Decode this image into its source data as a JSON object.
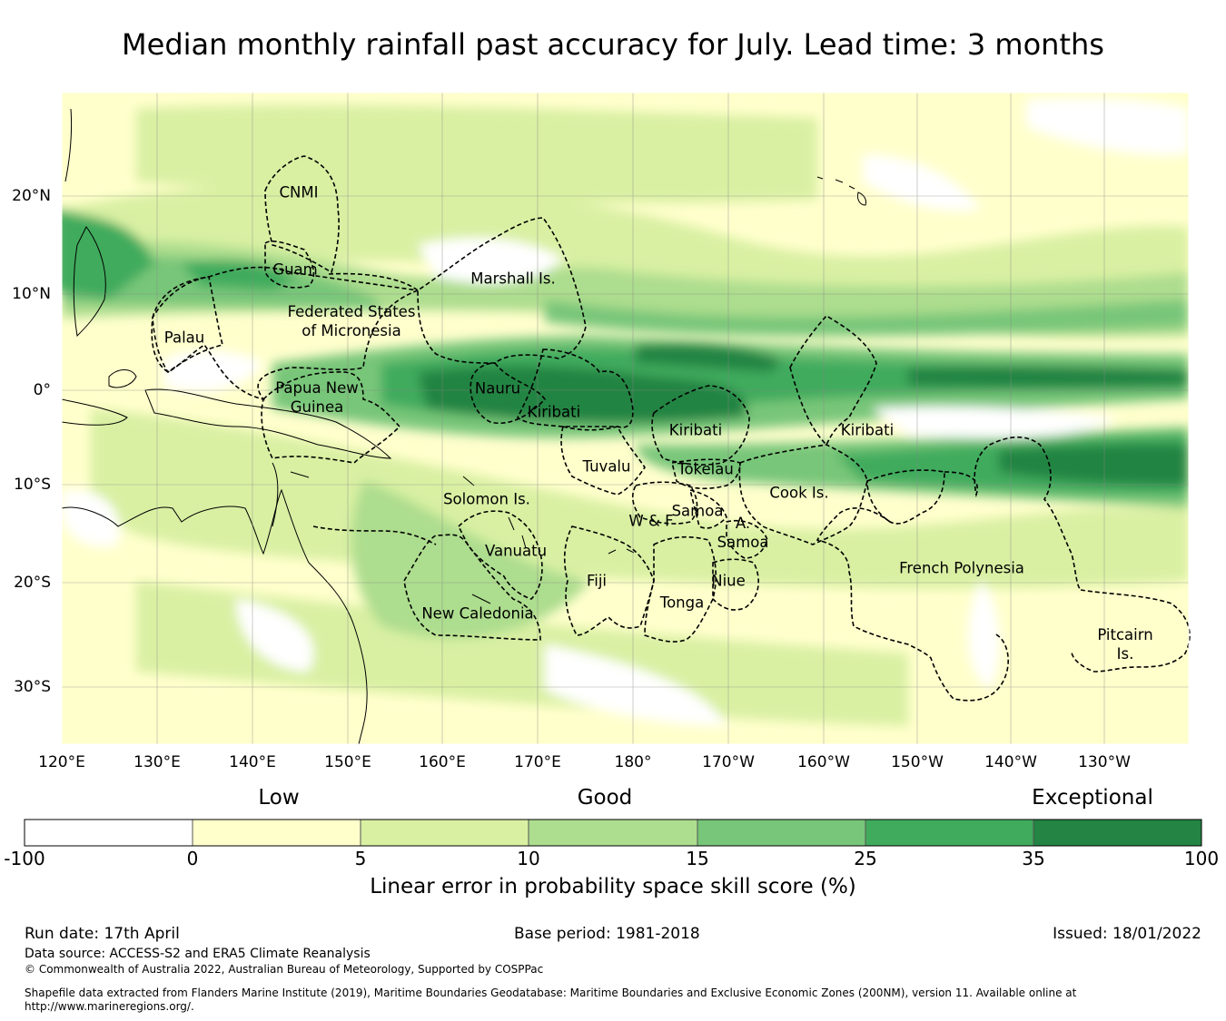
{
  "title": "Median monthly rainfall past accuracy for July. Lead time: 3 months",
  "map": {
    "lat_labels": [
      "20°N",
      "10°N",
      "0°",
      "10°S",
      "20°S",
      "30°S"
    ],
    "lon_labels": [
      "120°E",
      "130°E",
      "140°E",
      "150°E",
      "160°E",
      "170°E",
      "180°",
      "170°W",
      "160°W",
      "150°W",
      "140°W",
      "130°W"
    ],
    "regions": [
      {
        "name": "CNMI"
      },
      {
        "name": "Guam"
      },
      {
        "name": "Marshall Is."
      },
      {
        "name": "Palau"
      },
      {
        "name": "Federated States\nof Micronesia"
      },
      {
        "name": "Papua New\nGuinea"
      },
      {
        "name": "Nauru"
      },
      {
        "name": "Kiribati"
      },
      {
        "name": "Kiribati"
      },
      {
        "name": "Kiribati"
      },
      {
        "name": "Tuvalu"
      },
      {
        "name": "Tokelau"
      },
      {
        "name": "Solomon Is."
      },
      {
        "name": "Cook Is."
      },
      {
        "name": "Samoa"
      },
      {
        "name": "W & F"
      },
      {
        "name": "A.\nSamoa"
      },
      {
        "name": "Vanuatu"
      },
      {
        "name": "Fiji"
      },
      {
        "name": "Niue"
      },
      {
        "name": "Tonga"
      },
      {
        "name": "French Polynesia"
      },
      {
        "name": "New Caledonia"
      },
      {
        "name": "Pitcairn\nIs."
      }
    ]
  },
  "legend": {
    "categories": [
      "Low",
      "Good",
      "Exceptional"
    ],
    "ticks": [
      "-100",
      "0",
      "5",
      "10",
      "15",
      "25",
      "35",
      "100"
    ],
    "colors": [
      "#ffffff",
      "#ffffcc",
      "#d9f0a3",
      "#addd8e",
      "#78c679",
      "#41ab5d",
      "#238443"
    ],
    "title": "Linear error in probability space skill score (%)"
  },
  "footer": {
    "run_date": "Run date: 17th April",
    "base_period": "Base period: 1981-2018",
    "issued": "Issued: 18/01/2022",
    "data_source": "Data source: ACCESS-S2 and ERA5 Climate Reanalysis",
    "copyright": "© Commonwealth of Australia 2022, Australian Bureau of Meteorology, Supported by COSPPac",
    "shapefile": "Shapefile data extracted from Flanders Marine Institute (2019), Maritime Boundaries Geodatabase: Maritime Boundaries and Exclusive Economic Zones (200NM), version 11. Available online at http://www.marineregions.org/."
  }
}
